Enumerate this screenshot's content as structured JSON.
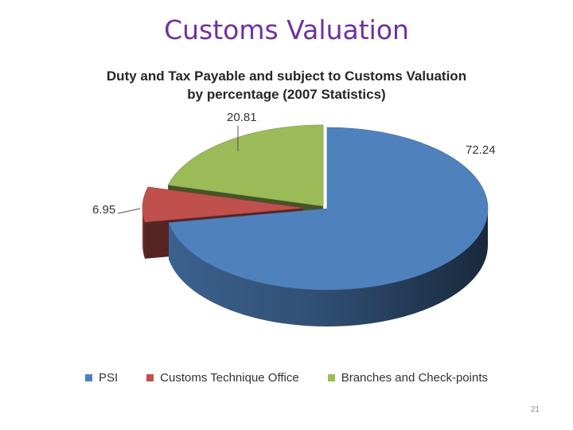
{
  "slide": {
    "title": "Customs Valuation",
    "page_number": "21"
  },
  "chart_data": {
    "type": "pie",
    "title_lines": [
      "Duty and Tax Payable and subject to Customs Valuation",
      "by percentage (2007 Statistics)"
    ],
    "categories": [
      "PSI",
      "Customs Technique Office",
      "Branches and Check-points"
    ],
    "values": [
      72.24,
      6.95,
      20.81
    ],
    "data_labels": [
      "72.24",
      "6.95",
      "20.81"
    ],
    "colors": [
      "#4f81bd",
      "#c0504d",
      "#9bbb59"
    ],
    "legend_position": "bottom",
    "style": "3d-exploded"
  }
}
